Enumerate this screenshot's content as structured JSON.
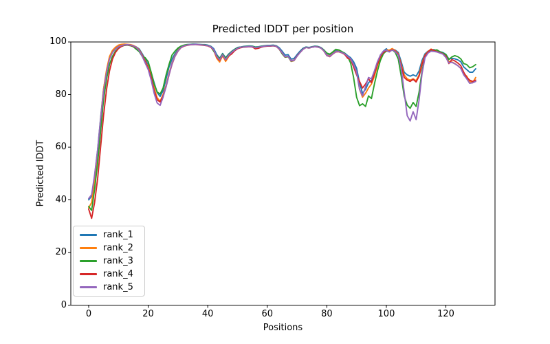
{
  "chart_data": {
    "type": "line",
    "title": "Predicted lDDT per position",
    "xlabel": "Positions",
    "ylabel": "Predicted lDDT",
    "xlim": [
      -6,
      136.5
    ],
    "ylim": [
      0,
      100
    ],
    "xticks": [
      0,
      20,
      40,
      60,
      80,
      100,
      120
    ],
    "yticks": [
      0,
      20,
      40,
      60,
      80,
      100
    ],
    "grid": false,
    "frame_color": "#000000",
    "legend": {
      "position": "lower left",
      "entries": [
        "rank_1",
        "rank_2",
        "rank_3",
        "rank_4",
        "rank_5"
      ]
    },
    "x_start": 0,
    "x_step": 1,
    "n_points": 131,
    "series": [
      {
        "name": "rank_1",
        "color": "#1f77b4",
        "values": [
          40,
          41.5,
          49,
          59,
          71,
          82,
          89,
          94,
          96.3,
          97.6,
          98.3,
          98.7,
          99,
          99,
          98.9,
          98.6,
          98.1,
          97.3,
          95.5,
          93.5,
          91.3,
          88.3,
          84.5,
          80.8,
          79.3,
          81.5,
          86,
          90.5,
          93.5,
          95.5,
          97.2,
          98.2,
          98.7,
          99,
          99.1,
          99.2,
          99.2,
          99.1,
          99,
          99,
          98.8,
          98.4,
          97.5,
          95.2,
          93.8,
          95.6,
          94,
          95.4,
          96.4,
          97.2,
          97.9,
          98.1,
          98.3,
          98.4,
          98.5,
          98.4,
          98.1,
          98.2,
          98.4,
          98.6,
          98.7,
          98.7,
          98.8,
          98.6,
          97.8,
          96.5,
          95,
          95.2,
          93.5,
          93.7,
          95.2,
          96.5,
          97.6,
          98.1,
          97.9,
          98.2,
          98.4,
          98.3,
          97.9,
          97,
          95.6,
          95.2,
          96,
          96.6,
          96.7,
          96.3,
          95.8,
          94.8,
          94,
          92.5,
          90,
          84.5,
          80.5,
          82,
          84.5,
          85.5,
          88,
          92,
          95,
          96.5,
          97.4,
          96.3,
          97.3,
          96.9,
          96,
          92.5,
          88.5,
          87.5,
          87,
          87.5,
          87,
          89,
          93,
          95.5,
          96.5,
          97,
          97.1,
          96.7,
          96.3,
          96,
          95.3,
          93.5,
          93.8,
          93.6,
          93.2,
          92.5,
          90.5,
          89.5,
          88.5,
          88.5,
          89.8
        ]
      },
      {
        "name": "rank_2",
        "color": "#ff7f0e",
        "values": [
          37,
          39,
          47.5,
          58,
          70.5,
          82,
          89.5,
          94.5,
          96.8,
          98,
          98.8,
          99.1,
          99.2,
          99.1,
          99,
          98.7,
          98,
          97,
          95,
          92.8,
          90.5,
          87,
          82.5,
          78.8,
          77.5,
          80,
          83.5,
          88,
          92,
          94.8,
          96.8,
          98,
          98.5,
          98.8,
          99,
          99,
          99.1,
          99,
          98.9,
          98.8,
          98.6,
          98.1,
          96.8,
          93.8,
          92.4,
          94.8,
          92.6,
          94.4,
          95.8,
          96.8,
          97.5,
          97.9,
          98.1,
          98.2,
          98.3,
          98.2,
          97.8,
          97.9,
          98.2,
          98.4,
          98.5,
          98.5,
          98.6,
          98.4,
          97.4,
          95.9,
          94.3,
          94.5,
          92.6,
          92.9,
          94.6,
          96,
          97.2,
          97.9,
          97.7,
          98,
          98.2,
          98.1,
          97.7,
          96.7,
          95,
          94.7,
          95.6,
          96.4,
          96.5,
          96,
          95.4,
          94.3,
          93.2,
          91.5,
          88.5,
          82,
          79,
          80.5,
          82.5,
          84,
          87,
          91,
          94,
          96,
          97,
          96.9,
          97.5,
          96.7,
          95.5,
          91.5,
          87.5,
          86,
          85.5,
          86,
          85.3,
          87.5,
          92,
          95,
          96.4,
          97.3,
          96.8,
          96.4,
          96,
          95.6,
          94.2,
          92.5,
          92.4,
          91.8,
          91,
          90,
          88,
          87,
          85,
          84.5,
          86.5
        ]
      },
      {
        "name": "rank_3",
        "color": "#2ca02c",
        "values": [
          37.5,
          36,
          44,
          54,
          66,
          78,
          86,
          91.5,
          94.5,
          96.5,
          97.6,
          98.3,
          98.7,
          98.8,
          98.6,
          98.2,
          97.2,
          96.3,
          94.5,
          94,
          92.5,
          88.5,
          84,
          81,
          80.2,
          82.5,
          87.5,
          91.5,
          95,
          96.5,
          97.7,
          98.4,
          98.8,
          99,
          99,
          99.1,
          99.1,
          99,
          99,
          98.9,
          98.7,
          98.3,
          96.5,
          94.9,
          93.6,
          95.4,
          93.8,
          95.2,
          96.2,
          97.1,
          97.8,
          98,
          98.2,
          98.3,
          98.4,
          98.3,
          98,
          98.1,
          98.3,
          98.5,
          98.6,
          98.6,
          98.7,
          98.5,
          97.3,
          95.5,
          94.2,
          94.4,
          92.7,
          93,
          94.7,
          96.1,
          97.3,
          98,
          97.8,
          98.1,
          98.3,
          98.2,
          97.8,
          97,
          95.8,
          95.4,
          96.2,
          97.2,
          97,
          96.4,
          95.7,
          94.4,
          92,
          86.5,
          79,
          75.8,
          76.5,
          75.5,
          79.5,
          78.5,
          84,
          89,
          93,
          95.5,
          96.6,
          96.3,
          97,
          96,
          93.5,
          87,
          79.5,
          76,
          74.8,
          77,
          75.5,
          81,
          89,
          94.5,
          96,
          96.6,
          96.8,
          97,
          96.3,
          95.8,
          95.2,
          93.3,
          94.3,
          94.8,
          94.4,
          93.6,
          91.8,
          91.4,
          90.2,
          90.6,
          91.4
        ]
      },
      {
        "name": "rank_4",
        "color": "#d62728",
        "values": [
          36.5,
          33,
          39,
          48,
          60,
          72,
          82,
          89,
          93.5,
          96,
          97.5,
          98.3,
          98.8,
          98.9,
          98.7,
          98.4,
          97.8,
          96.8,
          94.8,
          92.5,
          90,
          86.5,
          81.5,
          78,
          77.2,
          79.5,
          83,
          87.5,
          91.5,
          94.5,
          96.5,
          97.8,
          98.4,
          98.7,
          98.9,
          99,
          99,
          98.9,
          98.8,
          98.7,
          98.5,
          98,
          97,
          94.3,
          93,
          95,
          93.2,
          94.7,
          95.4,
          96.6,
          97.4,
          97.8,
          98,
          98.1,
          98.2,
          98.1,
          97.4,
          97.6,
          98,
          98.3,
          98.4,
          98.4,
          98.5,
          98.3,
          97.3,
          95.8,
          94.3,
          94.6,
          92.9,
          93.1,
          94.7,
          96,
          97.2,
          97.9,
          97.7,
          98,
          98.2,
          98.1,
          97.7,
          96.6,
          94.8,
          94.4,
          95.4,
          96.2,
          96.3,
          95.9,
          95.3,
          93.8,
          93.4,
          90.5,
          87.5,
          85,
          82.5,
          84,
          86,
          84.5,
          88,
          91.5,
          94.5,
          96,
          96.7,
          96.4,
          97.1,
          96.5,
          95.3,
          91,
          86.5,
          85.5,
          85,
          85.8,
          84.8,
          87,
          91.5,
          94.8,
          96.2,
          97.2,
          96.7,
          96.3,
          95.9,
          95.5,
          94.5,
          91.8,
          93.3,
          92.8,
          92,
          91,
          88.5,
          86.5,
          85.5,
          85,
          85.5
        ]
      },
      {
        "name": "rank_5",
        "color": "#9467bd",
        "values": [
          40.5,
          42,
          49.5,
          59,
          70.5,
          81,
          88.5,
          93.5,
          96,
          97.3,
          98.2,
          98.6,
          98.9,
          99,
          98.8,
          98.5,
          97.9,
          96.7,
          94.5,
          92,
          89.5,
          85.5,
          80.5,
          76.8,
          75.9,
          79,
          83,
          87.5,
          91.8,
          94.6,
          96.6,
          97.9,
          98.5,
          98.8,
          99,
          99,
          99.1,
          99,
          98.9,
          98.8,
          98.6,
          98.2,
          97.1,
          94.5,
          93.2,
          95.1,
          93.3,
          94.9,
          96,
          96.9,
          97.6,
          98,
          98.1,
          98.2,
          98.3,
          98.2,
          97.8,
          98,
          98.2,
          98.4,
          98.5,
          98.5,
          98.6,
          98.4,
          97.4,
          95.9,
          94.4,
          94.6,
          92.8,
          93,
          94.6,
          96,
          97.2,
          97.9,
          97.7,
          98,
          98.2,
          98.1,
          97.7,
          96.7,
          94.9,
          94.5,
          95.5,
          96.3,
          96.4,
          96,
          95.5,
          94.5,
          93.6,
          91.5,
          88.5,
          82,
          79.5,
          83,
          86.5,
          86,
          89,
          92.5,
          95,
          96.5,
          96.9,
          96.2,
          97,
          96.3,
          95,
          90,
          81,
          72,
          70,
          73.5,
          70.5,
          78,
          88,
          94,
          95.8,
          96.5,
          96.4,
          96.2,
          95.8,
          95.4,
          94.1,
          92,
          92.3,
          91.7,
          91,
          90,
          87.5,
          86,
          84.3,
          84.5,
          85
        ]
      }
    ]
  }
}
